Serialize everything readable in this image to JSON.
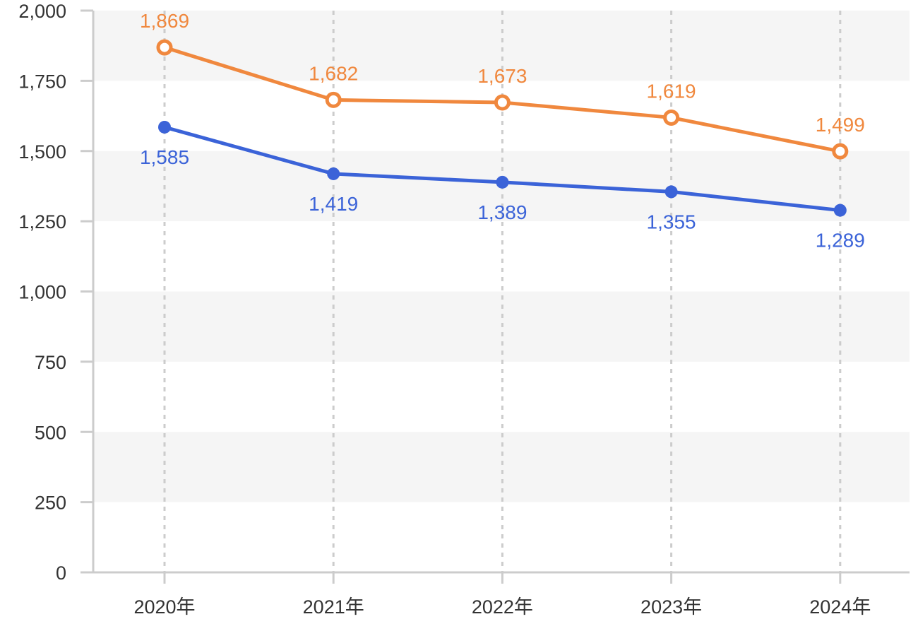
{
  "chart_data": {
    "type": "line",
    "categories": [
      "2020年",
      "2021年",
      "2022年",
      "2023年",
      "2024年"
    ],
    "series": [
      {
        "values": [
          1869,
          1682,
          1673,
          1619,
          1499
        ],
        "color": "#F0883E",
        "marker": "hollow-circle",
        "label_position": "above"
      },
      {
        "values": [
          1585,
          1419,
          1389,
          1355,
          1289
        ],
        "color": "#3B63D8",
        "marker": "filled-circle",
        "label_position": "below"
      }
    ],
    "y_ticks": [
      0,
      250,
      500,
      750,
      1000,
      1250,
      1500,
      1750,
      2000
    ],
    "y_tick_labels": [
      "0",
      "250",
      "500",
      "750",
      "1,000",
      "1,250",
      "1,500",
      "1,750",
      "2,000"
    ],
    "ylim": [
      0,
      2000
    ],
    "grid": "alternating horizontal bands, dashed vertical lines",
    "legend": "none",
    "title": "",
    "xlabel": "",
    "ylabel": ""
  }
}
